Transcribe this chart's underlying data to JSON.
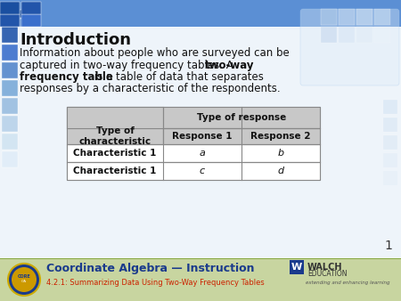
{
  "title": "Introduction",
  "line1": "Information about people who are surveyed can be",
  "line2_normal1": "captured in two-way frequency tables. A ",
  "line2_bold": "two-way",
  "line3_bold": "frequency table",
  "line3_normal": " is a table of data that separates",
  "line4": "responses by a characteristic of the respondents.",
  "table_header1": "Type of\ncharacteristic",
  "table_header2": "Type of response",
  "table_subheader1": "Response 1",
  "table_subheader2": "Response 2",
  "table_row1_col0": "Characteristic 1",
  "table_row1_col1": "a",
  "table_row1_col2": "b",
  "table_row2_col0": "Characteristic 1",
  "table_row2_col1": "c",
  "table_row2_col2": "d",
  "footer_bg": "#c8d5a0",
  "footer_title": "Coordinate Algebra — Instruction",
  "footer_title_color": "#1a3a8c",
  "footer_subtitle": "4.2.1: Summarizing Data Using Two-Way Frequency Tables",
  "footer_subtitle_color": "#cc2200",
  "page_number": "1",
  "slide_bg": "#dce8f5",
  "main_bg": "#eef3fa",
  "left_bar_color": "#4472c4",
  "top_bar_color": "#4472c4",
  "sq_colors_top_dark": "#3a6bb5",
  "sq_colors_top_light": "#a8c4e8",
  "sq_colors_right": "#c8dcf0",
  "table_header_bg": "#c8c8c8",
  "table_border": "#888888"
}
